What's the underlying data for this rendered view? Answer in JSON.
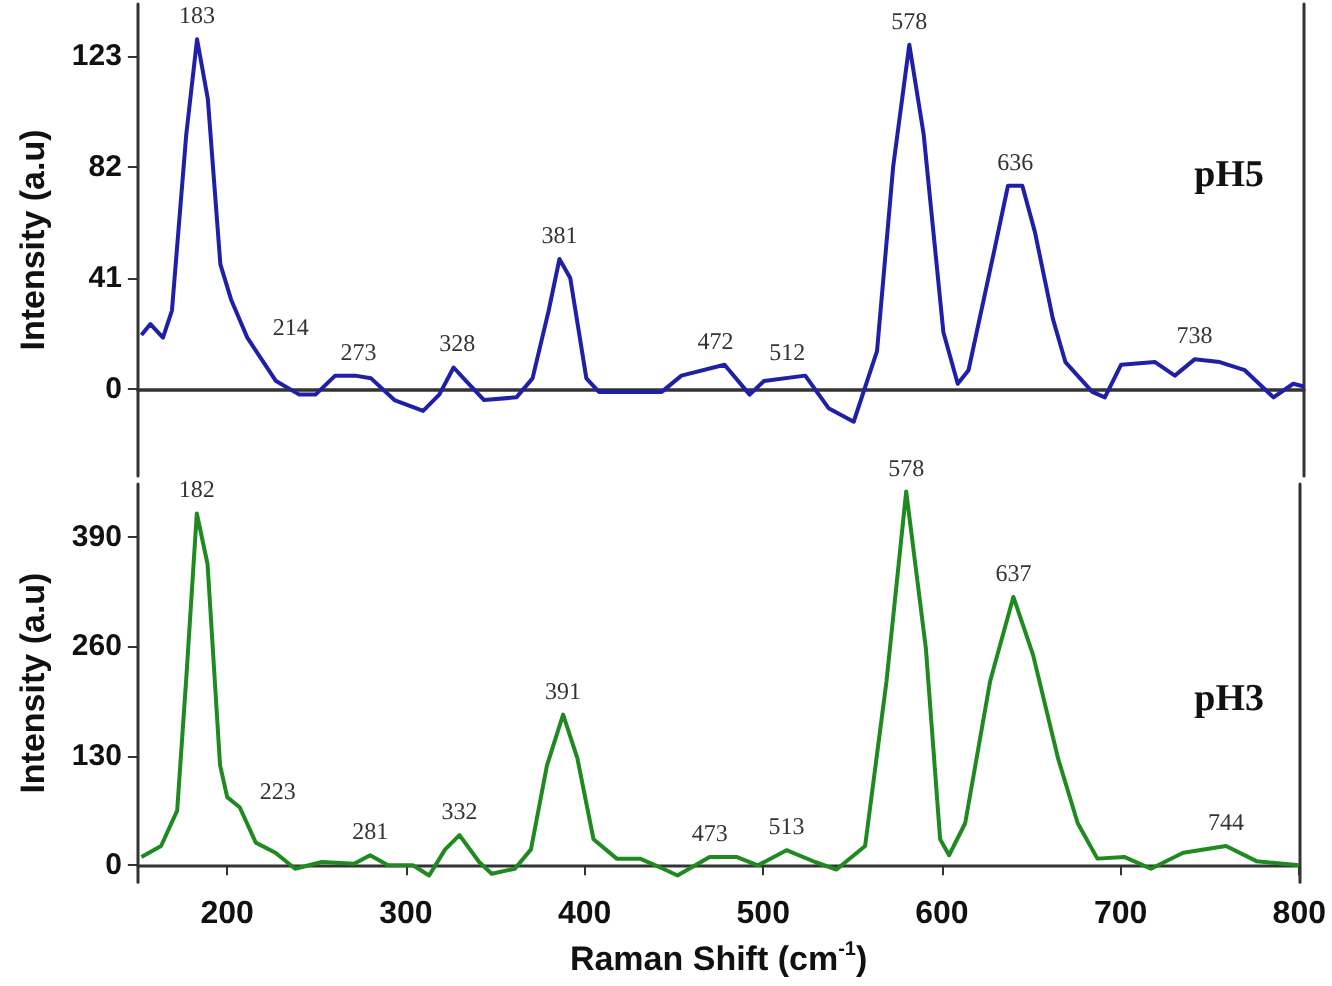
{
  "chart_data": [
    {
      "type": "line",
      "ylabel": "Intensity (a.u)",
      "xlim": [
        150,
        800
      ],
      "xticks": [
        200,
        300,
        400,
        500,
        600,
        700,
        800
      ],
      "ylim": [
        -32,
        142
      ],
      "yticks": [
        0,
        41,
        82,
        123
      ],
      "tick_labels": "y",
      "annotations": [
        "pH5",
        {
          "text": "183",
          "x": 183,
          "y": 129
        },
        {
          "text": "214",
          "x": 214,
          "y": 17
        },
        {
          "text": "273",
          "x": 273,
          "y": 5
        },
        {
          "text": "328",
          "x": 328,
          "y": 8
        },
        {
          "text": "381",
          "x": 385,
          "y": 48
        },
        {
          "text": "472",
          "x": 472,
          "y": 9
        },
        {
          "text": "512",
          "x": 512,
          "y": 5
        },
        {
          "text": "578",
          "x": 580,
          "y": 127
        },
        {
          "text": "636",
          "x": 639,
          "y": 75
        },
        {
          "text": "738",
          "x": 739,
          "y": 11
        }
      ],
      "series": [
        {
          "color": "#1f1fa8",
          "x": [
            152,
            157,
            164,
            169,
            177,
            183,
            189,
            196,
            202,
            211,
            220,
            227,
            240,
            249,
            260,
            271,
            280,
            293,
            309,
            318,
            326,
            333,
            343,
            361,
            370,
            379,
            385,
            391,
            400,
            407,
            442,
            453,
            477,
            491,
            499,
            522,
            535,
            549,
            562,
            571,
            580,
            588,
            599,
            607,
            613,
            627,
            635,
            643,
            650,
            660,
            667,
            682,
            689,
            698,
            717,
            728,
            739,
            753,
            767,
            783,
            794,
            800
          ],
          "values": [
            20,
            24,
            19,
            29,
            94,
            129,
            107,
            46,
            33,
            19,
            10,
            3,
            -2,
            -2,
            5,
            5,
            4,
            -4,
            -8,
            -2,
            8,
            3,
            -4,
            -3,
            4,
            29,
            48,
            41,
            4,
            -1,
            -1,
            5,
            9,
            -2,
            3,
            5,
            -7,
            -12,
            14,
            82,
            127,
            94,
            21,
            2,
            7,
            50,
            75,
            75,
            58,
            26,
            10,
            -1,
            -3,
            9,
            10,
            5,
            11,
            10,
            7,
            -3,
            2,
            1
          ]
        }
      ]
    },
    {
      "type": "line",
      "xlabel": "Raman Shift (cm$^{-1}$)",
      "ylabel": "Intensity (a.u)",
      "xlim": [
        150,
        800
      ],
      "xticks": [
        200,
        300,
        400,
        500,
        600,
        700,
        800
      ],
      "ylim": [
        -20,
        453
      ],
      "yticks": [
        0,
        130,
        260,
        390
      ],
      "annotations": [
        "pH3",
        {
          "text": "182",
          "x": 183,
          "y": 418
        },
        {
          "text": "223",
          "x": 207,
          "y": 69
        },
        {
          "text": "281",
          "x": 280,
          "y": 12
        },
        {
          "text": "332",
          "x": 330,
          "y": 36
        },
        {
          "text": "391",
          "x": 388,
          "y": 179
        },
        {
          "text": "473",
          "x": 470,
          "y": 10
        },
        {
          "text": "513",
          "x": 513,
          "y": 18
        },
        {
          "text": "578",
          "x": 580,
          "y": 444
        },
        {
          "text": "637",
          "x": 640,
          "y": 319
        },
        {
          "text": "744",
          "x": 759,
          "y": 23
        }
      ],
      "series": [
        {
          "color": "#1f8a1f",
          "x": [
            152,
            163,
            172,
            177,
            183,
            189,
            196,
            200,
            207,
            216,
            227,
            238,
            253,
            271,
            280,
            290,
            304,
            313,
            322,
            330,
            341,
            348,
            361,
            370,
            379,
            388,
            396,
            405,
            418,
            431,
            444,
            452,
            470,
            485,
            497,
            513,
            529,
            541,
            557,
            569,
            580,
            591,
            599,
            604,
            613,
            627,
            640,
            651,
            665,
            676,
            687,
            702,
            717,
            735,
            759,
            776,
            800
          ],
          "values": [
            10,
            23,
            65,
            219,
            418,
            358,
            119,
            81,
            69,
            27,
            15,
            -4,
            4,
            2,
            12,
            0,
            0,
            -12,
            19,
            36,
            4,
            -10,
            -4,
            19,
            119,
            179,
            127,
            31,
            8,
            8,
            -4,
            -12,
            10,
            10,
            0,
            18,
            4,
            -5,
            23,
            219,
            444,
            258,
            31,
            12,
            50,
            219,
            319,
            250,
            127,
            50,
            8,
            10,
            -4,
            15,
            23,
            5,
            0
          ]
        }
      ]
    }
  ]
}
